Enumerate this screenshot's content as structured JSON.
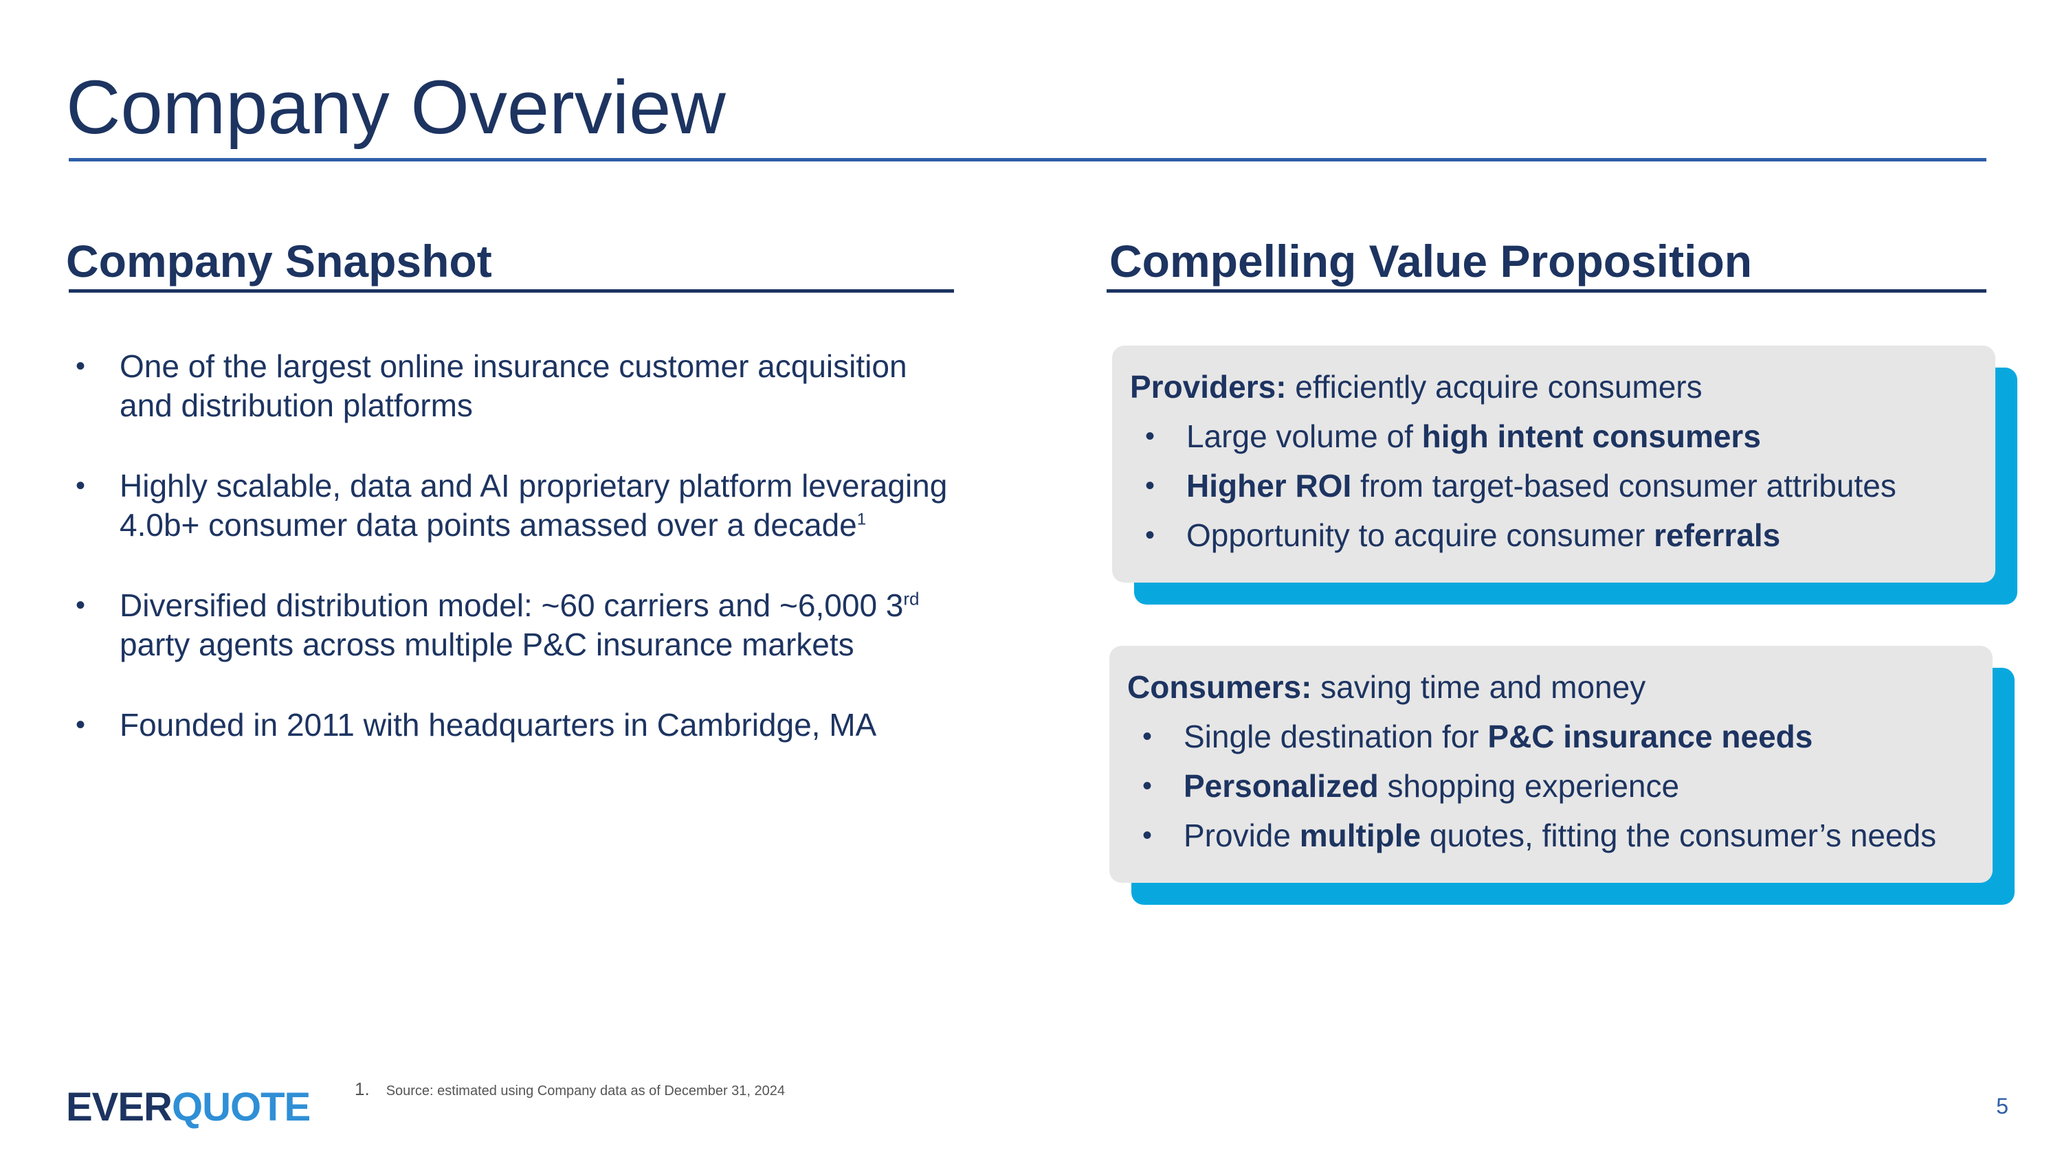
{
  "title": "Company Overview",
  "snapshot": {
    "heading": "Company Snapshot",
    "bullet_symbol": "•",
    "bullets": [
      {
        "text": "One of the largest online insurance customer acquisition and distribution platforms"
      },
      {
        "text": "Highly scalable, data and AI proprietary platform leveraging 4.0b+ consumer data points amassed over a decade",
        "footnote_marker": "1"
      },
      {
        "pre": "Diversified distribution model: ~60 carriers and ~6,000 3",
        "sup": "rd",
        "post": " party agents across multiple P&C insurance markets"
      },
      {
        "text": "Founded in 2011 with headquarters in Cambridge, MA"
      }
    ]
  },
  "value_prop": {
    "heading": "Compelling Value Proposition",
    "providers": {
      "lead_bold": "Providers:",
      "lead_rest": " efficiently acquire consumers",
      "items": [
        {
          "pre": "Large volume of ",
          "bold": "high intent consumers",
          "post": ""
        },
        {
          "pre": "",
          "bold": "Higher ROI",
          "post": " from target-based consumer attributes"
        },
        {
          "pre": "Opportunity to acquire consumer ",
          "bold": "referrals",
          "post": ""
        }
      ]
    },
    "consumers": {
      "lead_bold": "Consumers:",
      "lead_rest": " saving time and money",
      "items": [
        {
          "pre": "Single destination for ",
          "bold": "P&C insurance needs",
          "post": ""
        },
        {
          "pre": "",
          "bold": "Personalized",
          "post": " shopping experience"
        },
        {
          "pre": "Provide ",
          "bold": "multiple",
          "post": " quotes, fitting the consumer’s needs"
        }
      ]
    }
  },
  "footer": {
    "logo_part1": "EVER",
    "logo_part2": "QUOTE",
    "footnote_number": "1.",
    "footnote_text": "Source: estimated using Company data as of December 31, 2024",
    "page_number": "5"
  },
  "colors": {
    "navy": "#1d3461",
    "rule_blue": "#2e5ea8",
    "card_bg": "#e6e6e6",
    "card_accent": "#08a8df",
    "logo_light": "#2f8fd6"
  }
}
